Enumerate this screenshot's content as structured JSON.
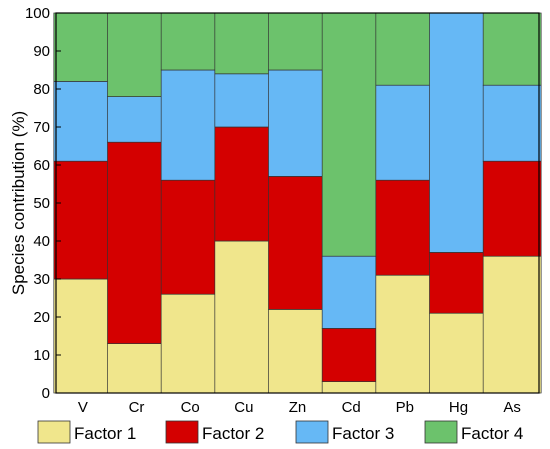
{
  "chart_data": {
    "type": "bar",
    "stacked": true,
    "title": "",
    "xlabel": "",
    "ylabel": "Species contribution (%)",
    "ylim": [
      0,
      100
    ],
    "yticks": [
      0,
      10,
      20,
      30,
      40,
      50,
      60,
      70,
      80,
      90,
      100
    ],
    "grid": false,
    "legend_position": "bottom",
    "categories": [
      "V",
      "Cr",
      "Co",
      "Cu",
      "Zn",
      "Cd",
      "Pb",
      "Hg",
      "As"
    ],
    "series": [
      {
        "name": "Factor 1",
        "color": "#f0e68c",
        "values": [
          30,
          13,
          26,
          40,
          22,
          3,
          31,
          21,
          36
        ]
      },
      {
        "name": "Factor 2",
        "color": "#d40000",
        "values": [
          31,
          53,
          30,
          30,
          35,
          14,
          25,
          16,
          25
        ]
      },
      {
        "name": "Factor 3",
        "color": "#66b8f5",
        "values": [
          21,
          12,
          29,
          14,
          28,
          19,
          25,
          63,
          20
        ]
      },
      {
        "name": "Factor 4",
        "color": "#6cc26c",
        "values": [
          18,
          22,
          15,
          16,
          15,
          64,
          19,
          0,
          19
        ]
      }
    ]
  }
}
